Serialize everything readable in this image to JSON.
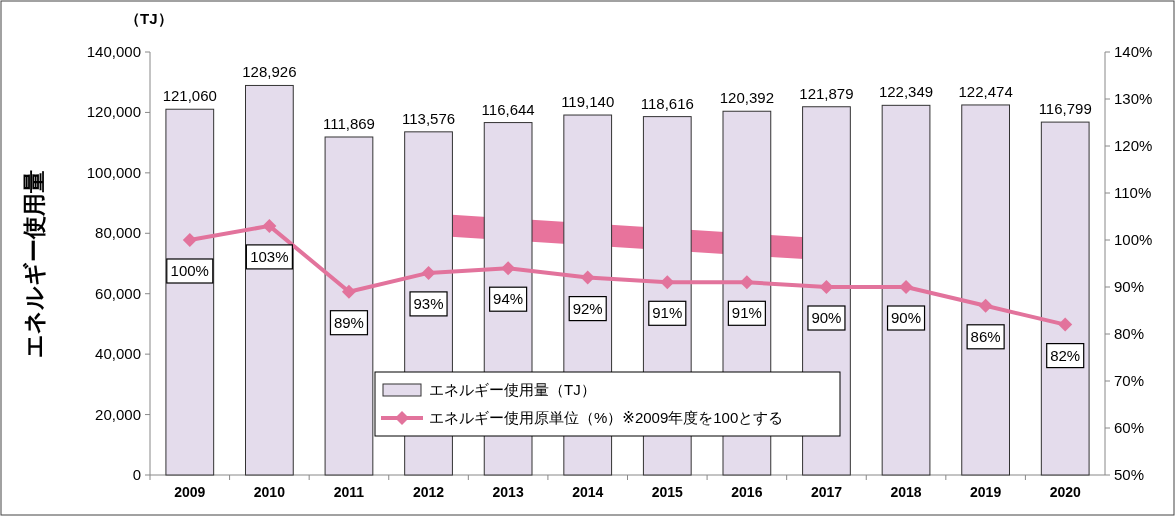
{
  "chart_data": {
    "type": "bar",
    "categories": [
      "2009",
      "2010",
      "2011",
      "2012",
      "2013",
      "2014",
      "2015",
      "2016",
      "2017",
      "2018",
      "2019",
      "2020"
    ],
    "series": [
      {
        "name": "エネルギー使用量（TJ）",
        "color": "#e4dcec",
        "values": [
          121060,
          128926,
          111869,
          113576,
          116644,
          119140,
          118616,
          120392,
          121879,
          122349,
          122474,
          116799
        ],
        "value_labels": [
          "121,060",
          "128,926",
          "111,869",
          "113,576",
          "116,644",
          "119,140",
          "118,616",
          "120,392",
          "121,879",
          "122,349",
          "122,474",
          "116,799"
        ]
      },
      {
        "name": "エネルギー使用原単位（%）※2009年度を100とする",
        "type": "line",
        "axis": "y2",
        "color": "#e2739c",
        "marker": "diamond",
        "values": [
          100,
          103,
          89,
          93,
          94,
          92,
          91,
          91,
          90,
          90,
          86,
          82
        ],
        "value_labels": [
          "100%",
          "103%",
          "89%",
          "93%",
          "94%",
          "92%",
          "91%",
          "91%",
          "90%",
          "90%",
          "86%",
          "82%"
        ]
      }
    ],
    "ylabel": "エネルギー使用量",
    "annotations": [
      "（TJ）"
    ],
    "ylim": [
      0,
      140000
    ],
    "yticks": [
      0,
      {
        "value": 20000,
        "label": "20,000"
      },
      {
        "value": 40000,
        "label": "40,000"
      },
      {
        "value": 60000,
        "label": "60,000"
      },
      {
        "value": 80000,
        "label": "80,000"
      },
      {
        "value": 100000,
        "label": "100,000"
      },
      {
        "value": 120000,
        "label": "120,000"
      },
      {
        "value": 140000,
        "label": "140,000"
      }
    ],
    "y2lim": [
      50,
      140
    ],
    "y2ticks": [
      {
        "value": 50,
        "label": "50%"
      },
      {
        "value": 60,
        "label": "60%"
      },
      {
        "value": 70,
        "label": "70%"
      },
      {
        "value": 80,
        "label": "80%"
      },
      {
        "value": 90,
        "label": "90%"
      },
      {
        "value": 100,
        "label": "100%"
      },
      {
        "value": 110,
        "label": "110%"
      },
      {
        "value": 120,
        "label": "120%"
      },
      {
        "value": 130,
        "label": "130%"
      },
      {
        "value": 140,
        "label": "140%"
      }
    ],
    "legend": "bottom"
  }
}
